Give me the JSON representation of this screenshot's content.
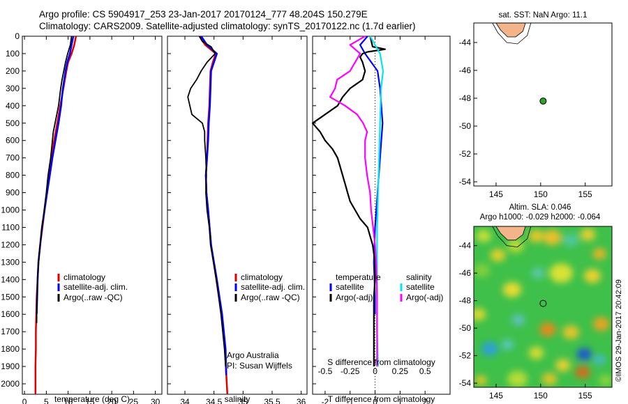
{
  "header": {
    "title_line1": "Argo profile: CS 5904917_253 23-Jan-2017 20170124_777 48.204S 150.279E",
    "title_line2": "Climatology: CARS2009. Satellite-adjusted climatology: synTS_20170122.nc (1.7d earlier)"
  },
  "colors": {
    "climatology": "#e00000",
    "satellite": "#0000ff",
    "argo": "#000000",
    "satellite_salinity": "#00e5ee",
    "argo_salinity_adj": "#ff00ff",
    "land": "#f4b48a"
  },
  "chart_data": [
    {
      "type": "line",
      "name": "temperature_profile",
      "xlabel": "temperature (deg C)",
      "ylabel": "",
      "xlim": [
        -0.5,
        31.5
      ],
      "ylim": [
        0,
        2060
      ],
      "xticks": [
        0,
        5,
        10,
        15,
        20,
        25,
        30
      ],
      "yticks": [
        0,
        100,
        200,
        300,
        400,
        500,
        600,
        700,
        800,
        900,
        1000,
        1100,
        1200,
        1300,
        1400,
        1500,
        1600,
        1700,
        1800,
        1900,
        2000
      ],
      "legend": [
        "climatology",
        "satellite-adj. clim.",
        "Argo(..raw -QC)"
      ],
      "series": [
        {
          "key": "clim",
          "depth": [
            0,
            50,
            100,
            150,
            200,
            300,
            400,
            500,
            600,
            700,
            800,
            900,
            1000,
            1100,
            1200,
            1300,
            1400,
            1500,
            1600,
            1700,
            1800,
            1900,
            2000,
            2060
          ],
          "values": [
            11.8,
            11.4,
            10.8,
            10.0,
            9.6,
            8.9,
            8.2,
            7.5,
            6.8,
            6.2,
            5.6,
            5.1,
            4.6,
            4.1,
            3.6,
            3.2,
            3.0,
            2.8,
            2.7,
            2.6,
            2.6,
            2.5,
            2.5,
            2.5
          ]
        },
        {
          "key": "sat",
          "depth": [
            0,
            50,
            100,
            150,
            200,
            300,
            400,
            500,
            600,
            700,
            800,
            900,
            1000,
            1100,
            1200,
            1300,
            1400,
            1500,
            1600
          ],
          "values": [
            11.2,
            10.8,
            10.4,
            9.8,
            9.4,
            8.8,
            8.4,
            7.8,
            7.1,
            6.4,
            5.8,
            5.2,
            4.6,
            4.0,
            3.6,
            3.2,
            3.0,
            2.9,
            2.8
          ]
        },
        {
          "key": "argo",
          "depth": [
            0,
            50,
            100,
            150,
            200,
            250,
            300,
            400,
            500,
            550,
            600,
            700,
            800,
            900,
            1000,
            1100,
            1200,
            1300,
            1400,
            1500,
            1600,
            1650
          ],
          "values": [
            10.8,
            10.5,
            9.9,
            9.4,
            9.0,
            8.6,
            8.3,
            7.8,
            7.0,
            6.6,
            6.4,
            6.0,
            5.4,
            5.0,
            4.5,
            4.0,
            3.6,
            3.2,
            3.0,
            2.9,
            2.8,
            2.8
          ]
        }
      ]
    },
    {
      "type": "line",
      "name": "salinity_profile",
      "xlabel": "salinity",
      "xlim": [
        33.7,
        36.1
      ],
      "ylim": [
        0,
        2060
      ],
      "xticks": [
        34,
        34.5,
        35,
        35.5,
        36
      ],
      "legend": [
        "climatology",
        "satellite-adj. clim.",
        "Argo(..raw -QC)"
      ],
      "annotation": [
        "Argo Australia",
        "PI: Susan Wijffels"
      ],
      "series": [
        {
          "key": "clim",
          "depth": [
            0,
            50,
            100,
            150,
            200,
            300,
            400,
            500,
            600,
            700,
            800,
            900,
            1000,
            1200,
            1400,
            1600,
            1800,
            2000,
            2060
          ],
          "values": [
            34.25,
            34.35,
            34.53,
            34.48,
            34.44,
            34.43,
            34.42,
            34.4,
            34.39,
            34.38,
            34.36,
            34.37,
            34.4,
            34.45,
            34.54,
            34.63,
            34.69,
            34.72,
            34.73
          ]
        },
        {
          "key": "sat",
          "depth": [
            0,
            50,
            100,
            150,
            200,
            300,
            400,
            500,
            600,
            700,
            800,
            900,
            1000,
            1200,
            1400,
            1600,
            1800,
            1950
          ],
          "values": [
            34.28,
            34.38,
            34.55,
            34.5,
            34.45,
            34.44,
            34.43,
            34.41,
            34.4,
            34.38,
            34.36,
            34.37,
            34.4,
            34.45,
            34.55,
            34.64,
            34.7,
            34.71
          ]
        },
        {
          "key": "argo",
          "depth": [
            0,
            30,
            60,
            100,
            150,
            200,
            250,
            300,
            350,
            450,
            500,
            550,
            600,
            650,
            700,
            800,
            900,
            1000,
            1100,
            1200,
            1400,
            1600,
            1800,
            1900
          ],
          "values": [
            34.25,
            34.3,
            34.45,
            34.52,
            34.38,
            34.28,
            34.2,
            34.1,
            34.05,
            34.12,
            34.3,
            34.34,
            34.34,
            34.35,
            34.36,
            34.37,
            34.36,
            34.38,
            34.42,
            34.44,
            34.54,
            34.62,
            34.68,
            34.7
          ]
        }
      ]
    },
    {
      "type": "line",
      "name": "difference_profile",
      "xlabel": "T difference from climatology",
      "top_axis_label": "S difference from climatology",
      "xlim": [
        -2.5,
        3.0
      ],
      "ylim": [
        0,
        2060
      ],
      "xticks": [
        -2,
        -1,
        0,
        1,
        2
      ],
      "top_ticks": [
        "-0.5",
        "-0.25",
        "0",
        "0.25",
        "0.5"
      ],
      "top_tick_positions_T": [
        -2,
        -1,
        0,
        1,
        2
      ],
      "legend_temperature_title": "temperature",
      "legend_salinity_title": "salinity",
      "legend_temperature": [
        "satellite",
        "Argo(-adj)"
      ],
      "legend_salinity": [
        "satellite",
        "Argo(-adj)"
      ],
      "series": [
        {
          "key": "sat_T",
          "depth": [
            0,
            50,
            100,
            200,
            300,
            500,
            700,
            900,
            1100,
            1300,
            1500,
            1600
          ],
          "values": [
            -0.3,
            -0.6,
            -0.4,
            0.1,
            0.2,
            0.3,
            0.2,
            0.1,
            0.0,
            -0.05,
            0.0,
            0.0
          ]
        },
        {
          "key": "argo_T",
          "depth": [
            0,
            60,
            75,
            90,
            100,
            120,
            150,
            200,
            250,
            300,
            350,
            400,
            450,
            500,
            550,
            600,
            650,
            700,
            750,
            800,
            850,
            900,
            950,
            1000,
            1050,
            1100,
            1200,
            1300,
            1400,
            1500,
            1700,
            1900
          ],
          "values": [
            -0.2,
            -0.1,
            0.4,
            -0.3,
            -0.5,
            -0.6,
            -0.5,
            -0.4,
            -0.5,
            -1.0,
            -1.3,
            -1.5,
            -2.0,
            -2.5,
            -2.2,
            -2.0,
            -1.7,
            -1.5,
            -1.4,
            -1.3,
            -1.2,
            -1.1,
            -1.0,
            -0.8,
            -0.6,
            -0.3,
            -0.1,
            0.0,
            0.0,
            -0.05,
            -0.05,
            -0.05
          ]
        },
        {
          "key": "sat_S",
          "depth": [
            0,
            50,
            100,
            200,
            300,
            500,
            700,
            900,
            1100,
            1300,
            1500,
            1700,
            1900
          ],
          "values": [
            -0.05,
            0.0,
            0.05,
            0.08,
            0.06,
            0.05,
            0.04,
            0.03,
            0.02,
            0.02,
            0.02,
            0.02,
            0.03
          ]
        },
        {
          "key": "argo_S",
          "depth": [
            0,
            50,
            100,
            150,
            200,
            250,
            300,
            350,
            400,
            450,
            500,
            550,
            600,
            700,
            800,
            900,
            1000,
            1100,
            1200,
            1300,
            1500,
            1700,
            1900
          ],
          "values": [
            -0.1,
            -0.25,
            -0.15,
            -0.2,
            -0.25,
            -0.38,
            -0.4,
            -0.45,
            -0.3,
            -0.18,
            -0.12,
            -0.08,
            -0.1,
            -0.1,
            -0.08,
            -0.05,
            -0.04,
            -0.02,
            0.0,
            0.01,
            0.02,
            0.02,
            0.02
          ]
        }
      ]
    },
    {
      "type": "scatter",
      "name": "sst_map",
      "title": "sat. SST: NaN Argo: 11.1",
      "xlim": [
        142.5,
        158
      ],
      "ylim": [
        -54.3,
        -42.6
      ],
      "xticks": [
        145,
        150,
        155
      ],
      "yticks": [
        -44,
        -46,
        -48,
        -50,
        -52,
        -54
      ],
      "points": [
        {
          "lon": 150.279,
          "lat": -48.204
        }
      ]
    },
    {
      "type": "heatmap",
      "name": "sla_map",
      "title_line1": "Altim. SLA: 0.046",
      "title_line2": "Argo h1000: -0.029 h2000: -0.064",
      "xlim": [
        142.5,
        158
      ],
      "ylim": [
        -54.3,
        -42.6
      ],
      "xticks": [
        145,
        150,
        155
      ],
      "yticks": [
        -44,
        -46,
        -48,
        -50,
        -52,
        -54
      ],
      "points": [
        {
          "lon": 150.279,
          "lat": -48.204
        }
      ]
    }
  ],
  "footer": {
    "credit": "©IMOS 29-Jan-2017 20:42:09"
  }
}
